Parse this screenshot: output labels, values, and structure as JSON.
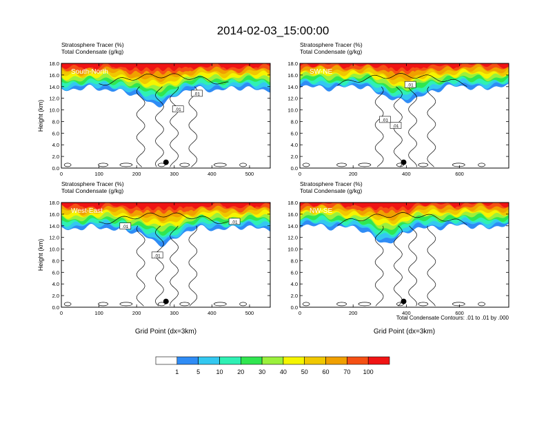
{
  "title": "2014-02-03_15:00:00",
  "footnote": "Total Condensate Contours: .01 to .01 by .000",
  "palette": {
    "white": "#ffffff",
    "c1": "#2f8cf5",
    "c5": "#33c8f0",
    "c10": "#2ff0b4",
    "c20": "#30e650",
    "c30": "#9bf03c",
    "c40": "#f5f500",
    "c50": "#f0c800",
    "c60": "#f0a000",
    "c70": "#f55014",
    "c100": "#f01414"
  },
  "colorbar": {
    "labels": [
      "1",
      "5",
      "10",
      "20",
      "30",
      "40",
      "50",
      "60",
      "70",
      "100"
    ]
  },
  "chart_data": [
    {
      "type": "heatmap",
      "section": "South-North",
      "subtitle_1": "Stratosphere Tracer   (%)",
      "subtitle_2": "Total Condensate   (g/kg)",
      "ylabel": "Height (km)",
      "xlabel": "",
      "xlim": [
        0,
        555
      ],
      "ylim": [
        0,
        18
      ],
      "xticks": [
        0,
        100,
        200,
        300,
        400,
        500
      ],
      "yticks": [
        "0.0",
        "2.0",
        "4.0",
        "6.0",
        "8.0",
        "10.0",
        "12.0",
        "14.0",
        "16.0",
        "18.0"
      ],
      "contour_labels": [
        {
          "text": ".01",
          "x": 310,
          "y": 10.1
        },
        {
          "text": ".01",
          "x": 360,
          "y": 12.8
        }
      ],
      "marker": {
        "x": 278,
        "y": 1.0
      }
    },
    {
      "type": "heatmap",
      "section": "SW-NE",
      "subtitle_1": "Stratosphere Tracer   (%)",
      "subtitle_2": "Total Condensate   (g/kg)",
      "ylabel": "",
      "xlabel": "",
      "xlim": [
        0,
        785
      ],
      "ylim": [
        0,
        18
      ],
      "xticks": [
        0,
        200,
        400,
        600
      ],
      "yticks": [
        "0.0",
        "2.0",
        "4.0",
        "6.0",
        "8.0",
        "10.0",
        "12.0",
        "14.0",
        "16.0",
        "18.0"
      ],
      "contour_labels": [
        {
          "text": ".01",
          "x": 320,
          "y": 8.3
        },
        {
          "text": ".01",
          "x": 360,
          "y": 7.3
        },
        {
          "text": ".01",
          "x": 415,
          "y": 14.3
        }
      ],
      "marker": {
        "x": 390,
        "y": 1.0
      }
    },
    {
      "type": "heatmap",
      "section": "West-East",
      "subtitle_1": "Stratosphere Tracer   (%)",
      "subtitle_2": "Total Condensate   (g/kg)",
      "ylabel": "Height (km)",
      "xlabel": "Grid Point (dx=3km)",
      "xlim": [
        0,
        555
      ],
      "ylim": [
        0,
        18
      ],
      "xticks": [
        0,
        100,
        200,
        300,
        400,
        500
      ],
      "yticks": [
        "0.0",
        "2.0",
        "4.0",
        "6.0",
        "8.0",
        "10.0",
        "12.0",
        "14.0",
        "16.0",
        "18.0"
      ],
      "contour_labels": [
        {
          "text": ".01",
          "x": 170,
          "y": 13.9
        },
        {
          "text": ".01",
          "x": 255,
          "y": 8.9
        },
        {
          "text": ".01",
          "x": 460,
          "y": 14.7
        }
      ],
      "marker": {
        "x": 278,
        "y": 1.0
      }
    },
    {
      "type": "heatmap",
      "section": "NW-SE",
      "subtitle_1": "Stratosphere Tracer   (%)",
      "subtitle_2": "Total Condensate   (g/kg)",
      "ylabel": "",
      "xlabel": "Grid Point (dx=3km)",
      "xlim": [
        0,
        785
      ],
      "ylim": [
        0,
        18
      ],
      "xticks": [
        0,
        200,
        400,
        600
      ],
      "yticks": [
        "0.0",
        "2.0",
        "4.0",
        "6.0",
        "8.0",
        "10.0",
        "12.0",
        "14.0",
        "16.0",
        "18.0"
      ],
      "contour_labels": [],
      "marker": {
        "x": 390,
        "y": 1.0
      }
    }
  ]
}
